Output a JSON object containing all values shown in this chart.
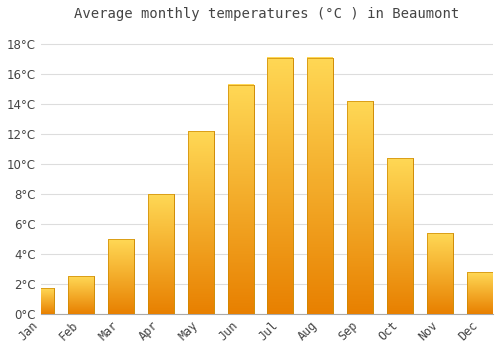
{
  "title": "Average monthly temperatures (°C ) in Beaumont",
  "months": [
    "Jan",
    "Feb",
    "Mar",
    "Apr",
    "May",
    "Jun",
    "Jul",
    "Aug",
    "Sep",
    "Oct",
    "Nov",
    "Dec"
  ],
  "values": [
    1.7,
    2.5,
    5.0,
    8.0,
    12.2,
    15.3,
    17.1,
    17.1,
    14.2,
    10.4,
    5.4,
    2.8
  ],
  "bar_color_mid": "#FFA500",
  "bar_color_top": "#FFD040",
  "bar_edge_color": "#CC8800",
  "background_color": "#FFFFFF",
  "grid_color": "#DDDDDD",
  "text_color": "#444444",
  "ylim": [
    0,
    19
  ],
  "yticks": [
    0,
    2,
    4,
    6,
    8,
    10,
    12,
    14,
    16,
    18
  ],
  "title_fontsize": 10,
  "tick_fontsize": 8.5
}
